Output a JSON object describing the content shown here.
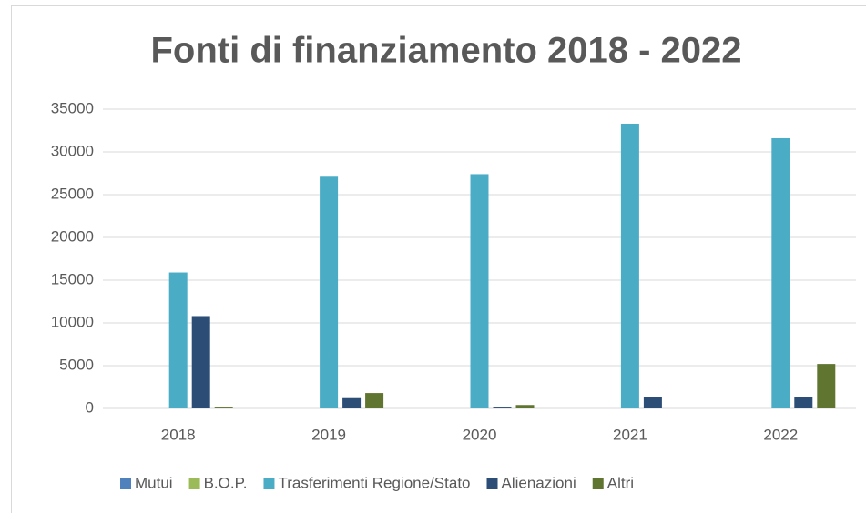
{
  "chart_data": {
    "type": "bar",
    "title": "Fonti di finanziamento 2018 - 2022",
    "categories": [
      "2018",
      "2019",
      "2020",
      "2021",
      "2022"
    ],
    "series": [
      {
        "name": "Mutui",
        "color": "#4f81bd",
        "values": [
          0,
          0,
          0,
          0,
          0
        ]
      },
      {
        "name": "B.O.P.",
        "color": "#9bbb59",
        "values": [
          0,
          0,
          0,
          0,
          0
        ]
      },
      {
        "name": "Trasferimenti Regione/Stato",
        "color": "#4bacc6",
        "values": [
          15900,
          27100,
          27400,
          33300,
          31600
        ]
      },
      {
        "name": "Alienazioni",
        "color": "#2c4d75",
        "values": [
          10800,
          1200,
          100,
          1300,
          1300
        ]
      },
      {
        "name": "Altri",
        "color": "#5f7530",
        "values": [
          100,
          1800,
          400,
          0,
          5200
        ]
      }
    ],
    "ylim": [
      0,
      35000
    ],
    "yticks": [
      0,
      5000,
      10000,
      15000,
      20000,
      25000,
      30000,
      35000
    ],
    "grid": true,
    "legend": "bottom"
  }
}
